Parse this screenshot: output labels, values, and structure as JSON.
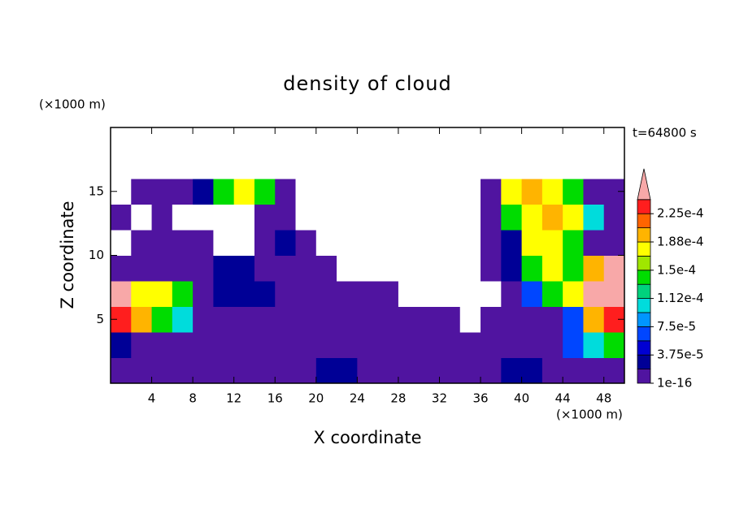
{
  "chart_data": {
    "type": "contour",
    "title": "density of cloud",
    "xlabel": "X coordinate",
    "ylabel": "Z coordinate",
    "x_units": "(×1000 m)",
    "y_units": "(×1000 m)",
    "annotation": "t=64800 s",
    "xlim": [
      0,
      50
    ],
    "ylim": [
      0,
      20
    ],
    "xticks": [
      4,
      8,
      12,
      16,
      20,
      24,
      28,
      32,
      36,
      40,
      44,
      48
    ],
    "yticks": [
      5,
      10,
      15
    ],
    "values": [
      [
        1e-05,
        1e-05,
        1e-05,
        1e-05,
        1e-05,
        1e-05,
        1e-05,
        1e-05,
        1e-05,
        1e-05,
        3e-05,
        3e-05,
        1e-05,
        1e-05,
        1e-05,
        1e-05,
        1e-05,
        1e-05,
        1e-05,
        3e-05,
        3e-05,
        1e-05,
        1e-05,
        1e-05,
        1e-05
      ],
      [
        3e-05,
        1e-05,
        1e-05,
        1e-05,
        1e-05,
        1e-05,
        1e-05,
        1e-05,
        1e-05,
        1e-05,
        1e-05,
        1e-05,
        1e-05,
        1e-05,
        1e-05,
        1e-05,
        1e-05,
        1e-05,
        1e-05,
        1e-05,
        1e-05,
        1e-05,
        6e-05,
        0.0001,
        0.00014
      ],
      [
        0.00023,
        0.0002,
        0.00014,
        0.0001,
        1e-05,
        1e-05,
        1e-05,
        1e-05,
        1e-05,
        1e-05,
        1e-05,
        1e-05,
        1e-05,
        1e-05,
        1e-05,
        1e-05,
        1e-05,
        0,
        1e-05,
        1e-05,
        1e-05,
        1e-05,
        6e-05,
        0.0002,
        0.00023
      ],
      [
        0.00026,
        0.00018,
        0.00018,
        0.00014,
        1e-05,
        3e-05,
        3e-05,
        3e-05,
        1e-05,
        1e-05,
        1e-05,
        1e-05,
        1e-05,
        1e-05,
        0,
        0,
        0,
        0,
        0,
        1e-05,
        6e-05,
        0.00014,
        0.00018,
        0.00026,
        0.00026
      ],
      [
        1e-05,
        1e-05,
        1e-05,
        1e-05,
        1e-05,
        3e-05,
        3e-05,
        1e-05,
        1e-05,
        1e-05,
        1e-05,
        0,
        0,
        0,
        0,
        0,
        0,
        0,
        1e-05,
        3e-05,
        0.00014,
        0.00018,
        0.00014,
        0.0002,
        0.00026
      ],
      [
        0,
        1e-05,
        1e-05,
        1e-05,
        1e-05,
        0,
        0,
        1e-05,
        3e-05,
        1e-05,
        0,
        0,
        0,
        0,
        0,
        0,
        0,
        0,
        1e-05,
        3e-05,
        0.00018,
        0.00018,
        0.00014,
        1e-05,
        1e-05
      ],
      [
        1e-05,
        0,
        1e-05,
        0,
        0,
        0,
        0,
        1e-05,
        1e-05,
        0,
        0,
        0,
        0,
        0,
        0,
        0,
        0,
        0,
        1e-05,
        0.00014,
        0.00018,
        0.0002,
        0.00018,
        0.0001,
        1e-05
      ],
      [
        0,
        1e-05,
        1e-05,
        1e-05,
        3e-05,
        0.00014,
        0.00018,
        0.00014,
        1e-05,
        0,
        0,
        0,
        0,
        0,
        0,
        0,
        0,
        0,
        1e-05,
        0.00018,
        0.0002,
        0.00018,
        0.00014,
        1e-05,
        1e-05
      ],
      [
        0,
        0,
        0,
        0,
        0,
        0,
        0,
        0,
        0,
        0,
        0,
        0,
        0,
        0,
        0,
        0,
        0,
        0,
        0,
        0,
        0,
        0,
        0,
        0,
        0
      ],
      [
        0,
        0,
        0,
        0,
        0,
        0,
        0,
        0,
        0,
        0,
        0,
        0,
        0,
        0,
        0,
        0,
        0,
        0,
        0,
        0,
        0,
        0,
        0,
        0,
        0
      ]
    ],
    "colorbar": {
      "levels": [
        1e-16,
        1.875e-05,
        3.75e-05,
        5.625e-05,
        7.5e-05,
        9.375e-05,
        0.0001125,
        0.00013125,
        0.00015,
        0.00016875,
        0.0001875,
        0.00020625,
        0.000225,
        0.00024375
      ],
      "colors": [
        "#5014a0",
        "#000096",
        "#0000d2",
        "#0046ff",
        "#0096ff",
        "#00dcdc",
        "#00d27d",
        "#00dc00",
        "#a0e600",
        "#ffff00",
        "#ffb400",
        "#ff6400",
        "#ff1e1e"
      ],
      "over_color": "#f8a8a8",
      "ticks": [
        {
          "value": 1e-16,
          "label": "1e-16"
        },
        {
          "value": 3.75e-05,
          "label": "3.75e-5"
        },
        {
          "value": 7.5e-05,
          "label": "7.5e-5"
        },
        {
          "value": 0.0001125,
          "label": "1.12e-4"
        },
        {
          "value": 0.00015,
          "label": "1.5e-4"
        },
        {
          "value": 0.0001875,
          "label": "1.88e-4"
        },
        {
          "value": 0.000225,
          "label": "2.25e-4"
        }
      ]
    }
  }
}
